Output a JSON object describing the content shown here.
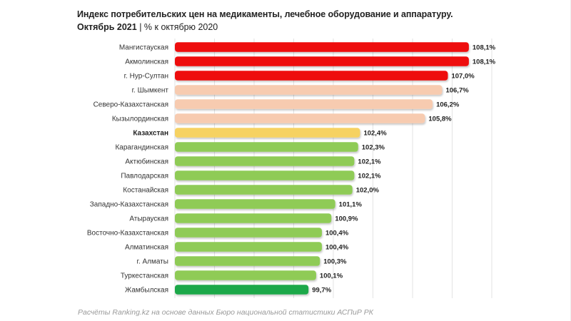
{
  "header": {
    "title": "Индекс потребительских цен на медикаменты, лечебное оборудование и аппаратуру.",
    "subtitle_bold": "Октябрь 2021",
    "subtitle_rest": " | % к октябрю 2020"
  },
  "footer": {
    "source": "Расчёты Ranking.kz на основе данных Бюро национальной статистики АСПиР РК"
  },
  "chart_data": {
    "type": "bar",
    "orientation": "horizontal",
    "title": "Индекс потребительских цен на медикаменты, лечебное оборудование и аппаратуру.",
    "subtitle": "Октябрь 2021 | % к октябрю 2020",
    "categories": [
      "Мангистауская",
      "Акмолинская",
      "г. Нур-Султан",
      "г. Шымкент",
      "Северо-Казахстанская",
      "Кызылординская",
      "Казахстан",
      "Карагандинская",
      "Актюбинская",
      "Павлодарская",
      "Костанайская",
      "Западно-Казахстанская",
      "Атырауская",
      "Восточно-Казахстанская",
      "Алматинская",
      "г. Алматы",
      "Туркестанская",
      "Жамбылская"
    ],
    "values": [
      108.1,
      108.1,
      107.0,
      106.7,
      106.2,
      105.8,
      102.4,
      102.3,
      102.1,
      102.1,
      102.0,
      101.1,
      100.9,
      100.4,
      100.4,
      100.3,
      100.1,
      99.7
    ],
    "value_labels": [
      "108,1%",
      "108,1%",
      "107,0%",
      "106,7%",
      "106,2%",
      "105,8%",
      "102,4%",
      "102,3%",
      "102,1%",
      "102,1%",
      "102,0%",
      "101,1%",
      "100,9%",
      "100,4%",
      "100,4%",
      "100,3%",
      "100,1%",
      "99,7%"
    ],
    "bar_colors": [
      "#ee0a0a",
      "#ee0a0a",
      "#ee0a0a",
      "#f7cbb0",
      "#f7cbb0",
      "#f7cbb0",
      "#f6d262",
      "#8fcb57",
      "#8fcb57",
      "#8fcb57",
      "#8fcb57",
      "#8fcb57",
      "#8fcb57",
      "#8fcb57",
      "#8fcb57",
      "#8fcb57",
      "#8fcb57",
      "#1fa84a"
    ],
    "highlight_category": "Казахстан",
    "xlim": [
      92.7,
      109.3
    ],
    "grid": true,
    "legend": "none"
  }
}
